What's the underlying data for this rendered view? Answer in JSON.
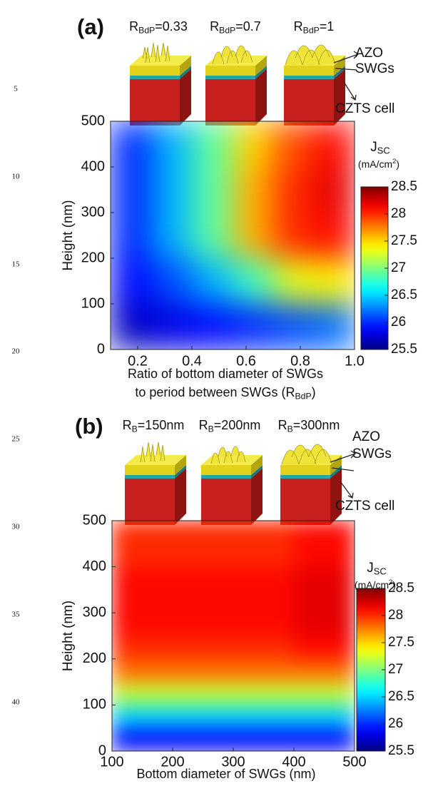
{
  "line_numbers": [
    "5",
    "10",
    "15",
    "20",
    "25",
    "30",
    "35",
    "40"
  ],
  "chart_data": [
    {
      "type": "heatmap",
      "panel_label": "(a)",
      "top_labels": [
        {
          "base": "R",
          "sub": "BdP",
          "rest": "=0.33"
        },
        {
          "base": "R",
          "sub": "BdP",
          "rest": "=0.7"
        },
        {
          "base": "R",
          "sub": "BdP",
          "rest": "=1"
        }
      ],
      "annotations": [
        "AZO",
        "SWGs",
        "CZTS cell"
      ],
      "ylabel": "Height (nm)",
      "xlabel": "Ratio of bottom diameter of SWGs",
      "xlabel2": {
        "base": "to period between SWGs (R",
        "sub": "BdP",
        "rest": ")"
      },
      "xlim": [
        0.1,
        1.0
      ],
      "ylim": [
        0,
        500
      ],
      "xticks": [
        0.2,
        0.4,
        0.6,
        0.8,
        {
          "value": 1,
          "label": "1.0"
        }
      ],
      "yticks": [
        0,
        100,
        200,
        300,
        400,
        500
      ],
      "xbins": [
        0.1,
        0.25,
        0.4,
        0.55,
        0.7,
        0.85,
        1.0
      ],
      "ybins": [
        0,
        100,
        200,
        300,
        400,
        500
      ],
      "z": [
        [
          25.7,
          25.8,
          25.9,
          26.0,
          26.1,
          26.2
        ],
        [
          25.9,
          26.1,
          26.4,
          26.8,
          27.3,
          27.4
        ],
        [
          26.0,
          26.4,
          26.9,
          27.6,
          28.0,
          28.1
        ],
        [
          26.0,
          26.4,
          26.9,
          27.6,
          28.0,
          28.2
        ],
        [
          26.0,
          26.4,
          26.9,
          27.5,
          27.9,
          28.1
        ]
      ],
      "colormap": "jet",
      "clim": [
        25.5,
        28.5
      ],
      "cticks": [
        25.5,
        26,
        26.5,
        27,
        27.5,
        28,
        28.5
      ],
      "colorbar_label": {
        "base": "J",
        "sub": "SC"
      },
      "colorbar_unit": {
        "base": "(mA/cm",
        "sup": "2",
        "rest": ")"
      }
    },
    {
      "type": "heatmap",
      "panel_label": "(b)",
      "top_labels": [
        {
          "base": "R",
          "sub": "B",
          "rest": "=150nm"
        },
        {
          "base": "R",
          "sub": "B",
          "rest": "=200nm"
        },
        {
          "base": "R",
          "sub": "B",
          "rest": "=300nm"
        }
      ],
      "annotations": [
        "AZO",
        "SWGs",
        "CZTS cell"
      ],
      "ylabel": "Height (nm)",
      "xlabel": "Bottom diameter of SWGs (nm)",
      "xlim": [
        100,
        500
      ],
      "ylim": [
        0,
        500
      ],
      "xticks": [
        100,
        200,
        300,
        400,
        500
      ],
      "yticks": [
        0,
        100,
        200,
        300,
        400,
        500
      ],
      "xbins": [
        100,
        200,
        300,
        400,
        500
      ],
      "ybins": [
        0,
        50,
        100,
        150,
        200,
        250,
        300,
        400,
        500
      ],
      "z": [
        [
          25.9,
          25.9,
          25.9,
          25.9
        ],
        [
          26.5,
          26.5,
          26.5,
          26.5
        ],
        [
          27.2,
          27.2,
          27.2,
          27.2
        ],
        [
          27.8,
          27.8,
          27.8,
          27.8
        ],
        [
          28.0,
          28.0,
          28.0,
          28.1
        ],
        [
          28.1,
          28.1,
          28.1,
          28.2
        ],
        [
          28.1,
          28.1,
          28.1,
          28.2
        ],
        [
          28.0,
          28.0,
          28.0,
          28.1
        ]
      ],
      "colormap": "jet",
      "clim": [
        25.5,
        28.5
      ],
      "cticks": [
        25.5,
        26,
        26.5,
        27,
        27.5,
        28,
        28.5
      ],
      "colorbar_label": {
        "base": "J",
        "sub": "SC"
      },
      "colorbar_unit": {
        "base": "(mA/cm",
        "sup": "2",
        "rest": ")"
      }
    }
  ]
}
